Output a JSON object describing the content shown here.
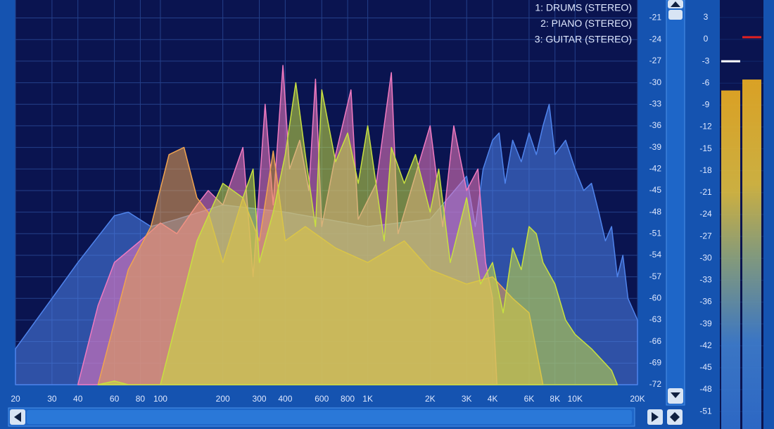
{
  "chart_data": {
    "type": "area",
    "xscale": "log",
    "xlim": [
      20,
      20000
    ],
    "ylim": [
      -72,
      -18.5
    ],
    "grid": true,
    "legend": "top-right",
    "xticks": [
      20,
      30,
      40,
      60,
      80,
      100,
      200,
      300,
      400,
      600,
      800,
      {
        "value": 1000,
        "label": "1K"
      },
      {
        "value": 2000,
        "label": "2K"
      },
      {
        "value": 3000,
        "label": "3K"
      },
      {
        "value": 4000,
        "label": "4K"
      },
      {
        "value": 6000,
        "label": "6K"
      },
      {
        "value": 8000,
        "label": "8K"
      },
      {
        "value": 10000,
        "label": "10K"
      },
      {
        "value": 20000,
        "label": "20K"
      }
    ],
    "yticks": [
      -21,
      -24,
      -27,
      -30,
      -33,
      -36,
      -39,
      -42,
      -45,
      -48,
      -51,
      -54,
      -57,
      -60,
      -63,
      -66,
      -69,
      -72
    ],
    "series": [
      {
        "name": "1: DRUMS (STEREO)",
        "color": "#4f84ec",
        "x": [
          20,
          30,
          40,
          60,
          70,
          90,
          120,
          200,
          400,
          1000,
          2000,
          3000,
          3300,
          3600,
          4000,
          4300,
          4600,
          5000,
          5500,
          6000,
          6500,
          7000,
          7500,
          8000,
          9000,
          10000,
          11000,
          12000,
          13000,
          14000,
          15000,
          16000,
          17000,
          18000,
          20000
        ],
        "values": [
          -67,
          -60,
          -55,
          -48.5,
          -48,
          -50,
          -49,
          -47,
          -48,
          -50,
          -49,
          -43,
          -50,
          -42,
          -38,
          -37,
          -44,
          -38,
          -41,
          -37,
          -40,
          -36,
          -33,
          -40,
          -38,
          -42,
          -45,
          -44,
          -48,
          -52,
          -50,
          -57,
          -54,
          -60,
          -63
        ]
      },
      {
        "name": "2: PIANO (STEREO)",
        "color": "#f07ac0",
        "x": [
          40,
          50,
          60,
          80,
          100,
          120,
          150,
          170,
          200,
          250,
          280,
          320,
          350,
          390,
          420,
          470,
          520,
          560,
          600,
          700,
          830,
          900,
          1100,
          1300,
          1400,
          2000,
          2300,
          2600,
          3000,
          3400,
          3700,
          4000,
          4200
        ],
        "values": [
          -72,
          -61,
          -55,
          -52,
          -49.5,
          -51,
          -47,
          -45,
          -47,
          -39,
          -57,
          -33,
          -47,
          -27.6,
          -42,
          -38,
          -45,
          -29.5,
          -50,
          -40,
          -31,
          -49,
          -44,
          -28.6,
          -51,
          -36,
          -50,
          -36,
          -45,
          -42,
          -55,
          -60,
          -72
        ]
      },
      {
        "name": "3: GUITAR (STEREO)",
        "color": "#f0a450",
        "x": [
          50,
          70,
          90,
          110,
          130,
          150,
          170,
          200,
          250,
          300,
          350,
          400,
          500,
          700,
          1000,
          1500,
          2000,
          3000,
          4000,
          5000,
          6000,
          7000
        ],
        "values": [
          -72,
          -56,
          -50,
          -40,
          -39,
          -46,
          -48,
          -55,
          -46,
          -52,
          -39.5,
          -52,
          -50,
          -53,
          -55,
          -52,
          -56,
          -58,
          -57,
          -60,
          -62,
          -72
        ]
      },
      {
        "color": "#c8e040",
        "x": [
          50,
          60,
          70,
          100,
          120,
          150,
          200,
          250,
          280,
          300,
          350,
          400,
          450,
          500,
          560,
          600,
          700,
          800,
          900,
          1000,
          1200,
          1300,
          1500,
          1700,
          2000,
          2200,
          2500,
          3000,
          3500,
          4000,
          4500,
          5000,
          5500,
          6000,
          6500,
          7000,
          8000,
          9000,
          10000,
          12000,
          15000,
          16000
        ],
        "values": [
          -72,
          -71.5,
          -72,
          -72,
          -63,
          -52,
          -44,
          -46,
          -42,
          -55,
          -48,
          -40,
          -30,
          -40,
          -50,
          -31,
          -41,
          -37,
          -44,
          -36,
          -52,
          -39,
          -44,
          -40,
          -48,
          -42,
          -55,
          -46,
          -58,
          -55,
          -62,
          -53,
          -56,
          -50,
          -51,
          -55,
          -58,
          -63,
          -65,
          -67,
          -70,
          -72
        ]
      }
    ],
    "meter": {
      "ylim": [
        -53.4,
        5.4
      ],
      "yticks": [
        3,
        0,
        -3,
        -6,
        -9,
        -12,
        -15,
        -18,
        -21,
        -24,
        -27,
        -30,
        -33,
        -36,
        -39,
        -42,
        -45,
        -48,
        -51
      ],
      "levels": [
        -7,
        -5.5
      ],
      "peaks": [
        -3,
        0.3
      ],
      "peak_colors": [
        "#ffffff",
        "#e02020"
      ]
    }
  }
}
